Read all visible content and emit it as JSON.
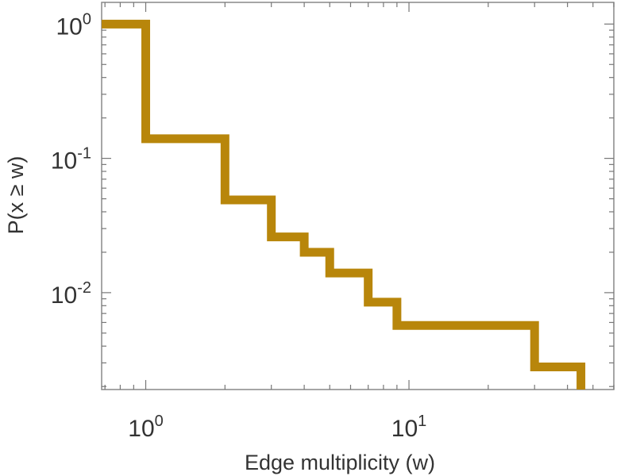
{
  "chart_data": {
    "type": "line",
    "subtype": "step-ccdf",
    "title": "",
    "xlabel": "Edge multiplicity (w)",
    "ylabel": "P(x ≥ w)",
    "xscale": "log",
    "yscale": "log",
    "xlim": [
      0.68,
      60
    ],
    "ylim": [
      0.0019,
      1.45
    ],
    "grid": false,
    "x_ticks": [
      {
        "value": 1,
        "base": "10",
        "exp": "0"
      },
      {
        "value": 10,
        "base": "10",
        "exp": "1"
      }
    ],
    "y_ticks": [
      {
        "value": 1,
        "base": "10",
        "exp": "0"
      },
      {
        "value": 0.1,
        "base": "10",
        "exp": "-1"
      },
      {
        "value": 0.01,
        "base": "10",
        "exp": "-2"
      }
    ],
    "series": [
      {
        "color": "#B8860B",
        "x": [
          0.68,
          1,
          2,
          3,
          4,
          5,
          7,
          9,
          30,
          45
        ],
        "y": [
          1.0,
          0.14,
          0.049,
          0.026,
          0.02,
          0.014,
          0.0085,
          0.0057,
          0.0028,
          0.0019
        ]
      }
    ]
  }
}
